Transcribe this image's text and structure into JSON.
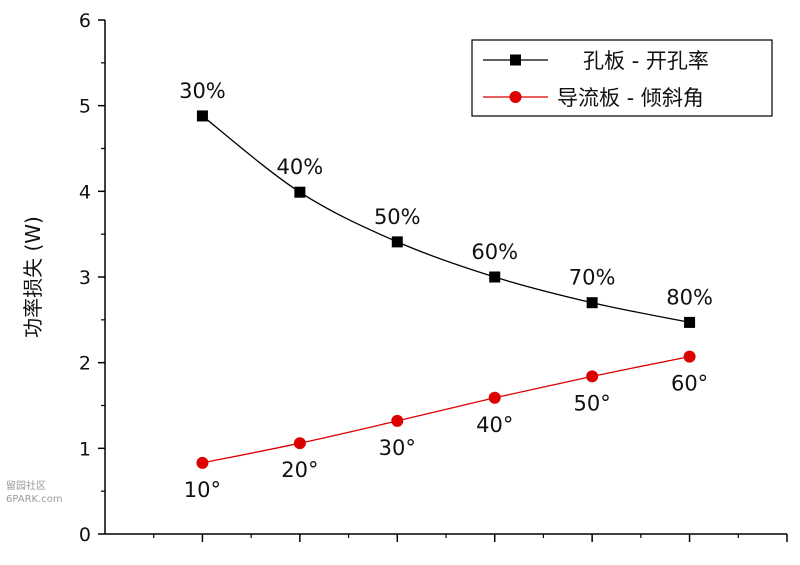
{
  "chart_data": {
    "type": "line",
    "title": "",
    "xlabel": "",
    "ylabel": "功率损失 (W)",
    "x": [
      1,
      2,
      3,
      4,
      5,
      6
    ],
    "xlim": [
      0,
      7
    ],
    "ylim": [
      0,
      6
    ],
    "yticks": [
      "0",
      "1",
      "2",
      "3",
      "4",
      "5",
      "6"
    ],
    "grid": false,
    "legend_position": "top-right",
    "series": [
      {
        "name": "孔板 - 开孔率",
        "color": "#000000",
        "marker": "square",
        "values": [
          4.88,
          3.99,
          3.41,
          3.0,
          2.7,
          2.47
        ],
        "point_labels": [
          "30%",
          "40%",
          "50%",
          "60%",
          "70%",
          "80%"
        ]
      },
      {
        "name": "导流板 - 倾斜角",
        "color": "#dd0000",
        "marker": "circle",
        "values": [
          0.83,
          1.06,
          1.32,
          1.59,
          1.84,
          2.07
        ],
        "point_labels": [
          "10°",
          "20°",
          "30°",
          "40°",
          "50°",
          "60°"
        ]
      }
    ]
  },
  "watermark": {
    "line1": "留园社区",
    "line2": "6PARK.com"
  }
}
